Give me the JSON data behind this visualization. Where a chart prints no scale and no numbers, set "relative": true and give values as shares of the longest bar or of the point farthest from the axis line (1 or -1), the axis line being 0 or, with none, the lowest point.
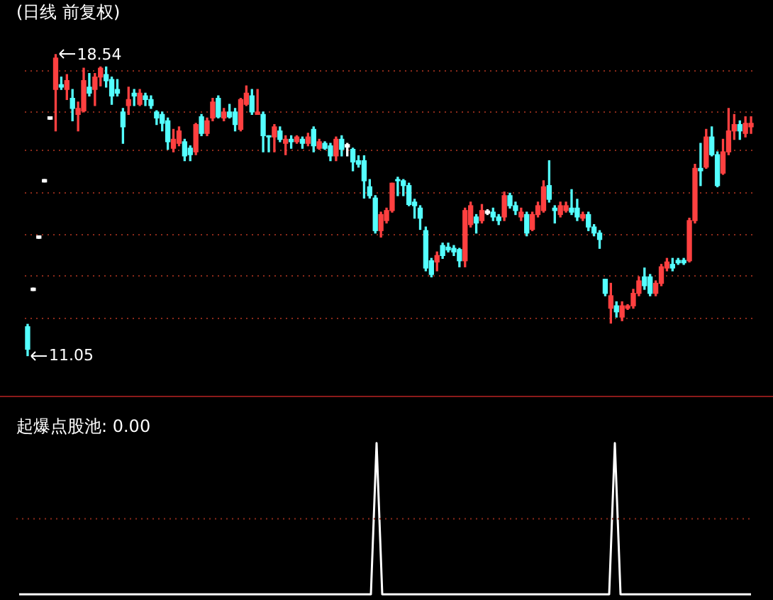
{
  "chart_data": [
    {
      "type": "candlestick",
      "title": "(日线 前复权)",
      "categories": [
        null,
        null,
        null,
        null,
        null,
        null,
        null,
        null,
        null,
        null,
        null,
        null,
        null,
        null,
        null,
        null,
        null,
        null,
        null,
        null,
        null,
        null,
        null,
        null,
        null,
        null,
        null,
        null,
        null,
        null,
        null,
        null,
        null,
        null,
        null,
        null,
        null,
        null,
        null,
        null,
        null,
        null,
        null,
        null,
        null,
        null,
        null,
        null,
        null,
        null,
        null,
        null,
        null,
        null,
        null,
        null,
        null,
        null,
        null,
        null,
        null,
        null,
        null,
        null,
        null,
        null,
        null,
        null,
        null,
        null,
        null,
        null,
        null,
        null,
        null,
        null,
        null,
        null,
        null,
        null,
        null,
        null,
        null,
        null,
        null,
        null,
        null,
        null,
        null,
        null,
        null,
        null,
        null,
        null,
        null,
        null,
        null,
        null,
        null,
        null,
        null,
        null,
        null,
        null,
        null,
        null,
        null,
        null,
        null,
        null,
        null,
        null,
        null,
        null,
        null,
        null,
        null,
        null,
        null,
        null,
        null,
        null,
        null,
        null,
        null,
        null,
        null,
        null,
        null,
        null
      ],
      "ohlc": [
        [
          11.77,
          11.83,
          11.05,
          11.21
        ],
        [
          12.73,
          12.73,
          12.67,
          12.67
        ],
        [
          14.03,
          14.03,
          13.97,
          13.97
        ],
        [
          15.43,
          15.43,
          15.37,
          15.37
        ],
        [
          16.99,
          16.99,
          16.93,
          16.93
        ],
        [
          17.67,
          18.54,
          16.64,
          18.45
        ],
        [
          17.79,
          17.98,
          17.67,
          17.73
        ],
        [
          17.67,
          18.04,
          17.42,
          17.89
        ],
        [
          17.45,
          17.67,
          16.89,
          17.2
        ],
        [
          17.05,
          17.36,
          16.64,
          17.2
        ],
        [
          17.14,
          18.2,
          17.11,
          17.89
        ],
        [
          17.73,
          18.07,
          17.51,
          17.58
        ],
        [
          17.67,
          18.07,
          17.27,
          17.98
        ],
        [
          17.98,
          18.23,
          17.76,
          18.2
        ],
        [
          18.04,
          18.23,
          17.73,
          17.89
        ],
        [
          17.92,
          17.98,
          17.3,
          17.51
        ],
        [
          17.67,
          17.92,
          17.51,
          17.58
        ],
        [
          17.11,
          17.2,
          16.33,
          16.74
        ],
        [
          17.27,
          17.73,
          17.05,
          17.42
        ],
        [
          17.58,
          17.67,
          17.27,
          17.51
        ],
        [
          17.3,
          17.67,
          17.27,
          17.58
        ],
        [
          17.51,
          17.58,
          17.27,
          17.42
        ],
        [
          17.42,
          17.51,
          17.2,
          17.27
        ],
        [
          17.11,
          17.14,
          16.8,
          16.96
        ],
        [
          17.05,
          17.11,
          16.64,
          16.83
        ],
        [
          16.89,
          16.96,
          16.18,
          16.37
        ],
        [
          16.21,
          16.68,
          16.12,
          16.43
        ],
        [
          16.33,
          16.74,
          16.27,
          16.64
        ],
        [
          16.37,
          16.43,
          15.9,
          16.02
        ],
        [
          16.21,
          16.27,
          15.9,
          16.05
        ],
        [
          16.12,
          16.83,
          16.05,
          16.8
        ],
        [
          16.99,
          17.05,
          16.52,
          16.58
        ],
        [
          16.58,
          16.96,
          16.52,
          16.89
        ],
        [
          16.96,
          17.45,
          16.89,
          17.36
        ],
        [
          17.45,
          17.51,
          16.96,
          16.99
        ],
        [
          16.96,
          17.2,
          16.89,
          17.11
        ],
        [
          17.11,
          17.3,
          16.96,
          16.99
        ],
        [
          17.11,
          17.2,
          16.64,
          16.8
        ],
        [
          16.68,
          17.45,
          16.64,
          17.42
        ],
        [
          17.3,
          17.76,
          17.27,
          17.58
        ],
        [
          17.51,
          17.67,
          17.05,
          17.11
        ],
        [
          17.05,
          17.67,
          17.05,
          17.11
        ],
        [
          17.05,
          17.11,
          16.12,
          16.52
        ],
        [
          16.52,
          16.52,
          16.12,
          16.49
        ],
        [
          16.49,
          16.8,
          16.12,
          16.74
        ],
        [
          16.64,
          16.74,
          16.37,
          16.43
        ],
        [
          16.33,
          16.52,
          16.05,
          16.43
        ],
        [
          16.43,
          16.52,
          16.21,
          16.37
        ],
        [
          16.37,
          16.52,
          16.33,
          16.49
        ],
        [
          16.43,
          16.49,
          16.21,
          16.33
        ],
        [
          16.33,
          16.58,
          16.27,
          16.49
        ],
        [
          16.68,
          16.74,
          16.12,
          16.27
        ],
        [
          16.21,
          16.43,
          16.18,
          16.37
        ],
        [
          16.33,
          16.37,
          16.18,
          16.21
        ],
        [
          16.27,
          16.33,
          15.9,
          16.02
        ],
        [
          16.02,
          16.49,
          15.9,
          16.43
        ],
        [
          16.43,
          16.52,
          16.02,
          16.18
        ],
        [
          16.3,
          16.33,
          16.02,
          16.24
        ],
        [
          16.18,
          16.21,
          15.65,
          15.87
        ],
        [
          15.9,
          16.02,
          15.74,
          15.81
        ],
        [
          15.9,
          16.02,
          14.97,
          15.4
        ],
        [
          15.25,
          15.43,
          14.97,
          15.03
        ],
        [
          14.97,
          15.03,
          14.1,
          14.16
        ],
        [
          14.16,
          14.62,
          14.0,
          14.56
        ],
        [
          14.41,
          14.72,
          14.35,
          14.66
        ],
        [
          14.66,
          15.34,
          14.62,
          15.34
        ],
        [
          15.43,
          15.49,
          15.03,
          15.4
        ],
        [
          15.4,
          15.43,
          15.03,
          15.28
        ],
        [
          15.28,
          15.34,
          14.78,
          14.81
        ],
        [
          14.87,
          14.94,
          14.47,
          14.78
        ],
        [
          14.72,
          14.78,
          14.19,
          14.47
        ],
        [
          14.16,
          14.25,
          13.16,
          13.23
        ],
        [
          13.41,
          13.47,
          13.01,
          13.07
        ],
        [
          13.38,
          13.63,
          13.16,
          13.54
        ],
        [
          13.79,
          13.85,
          13.47,
          13.54
        ],
        [
          13.75,
          13.85,
          13.63,
          13.68
        ],
        [
          13.72,
          13.79,
          13.54,
          13.63
        ],
        [
          13.69,
          13.72,
          13.26,
          13.41
        ],
        [
          13.41,
          14.72,
          13.26,
          14.66
        ],
        [
          14.31,
          14.87,
          14.25,
          14.78
        ],
        [
          14.5,
          14.56,
          14.1,
          14.35
        ],
        [
          14.41,
          14.81,
          14.35,
          14.66
        ],
        [
          14.65,
          14.68,
          14.56,
          14.59
        ],
        [
          14.62,
          14.72,
          14.41,
          14.5
        ],
        [
          14.5,
          14.56,
          14.31,
          14.41
        ],
        [
          14.5,
          15.12,
          14.41,
          15.03
        ],
        [
          15.03,
          15.09,
          14.72,
          14.78
        ],
        [
          14.78,
          14.87,
          14.56,
          14.66
        ],
        [
          14.5,
          14.72,
          14.41,
          14.62
        ],
        [
          14.56,
          14.62,
          14.03,
          14.1
        ],
        [
          14.19,
          14.62,
          14.16,
          14.56
        ],
        [
          14.56,
          14.87,
          14.5,
          14.78
        ],
        [
          14.66,
          15.4,
          14.62,
          15.25
        ],
        [
          15.28,
          15.9,
          14.87,
          14.94
        ],
        [
          14.72,
          14.78,
          14.35,
          14.66
        ],
        [
          14.56,
          14.87,
          14.5,
          14.78
        ],
        [
          14.66,
          14.87,
          14.62,
          14.78
        ],
        [
          14.72,
          15.18,
          14.56,
          14.62
        ],
        [
          14.72,
          14.94,
          14.41,
          14.5
        ],
        [
          14.47,
          14.62,
          14.41,
          14.56
        ],
        [
          14.56,
          14.62,
          14.16,
          14.25
        ],
        [
          14.25,
          14.31,
          14.03,
          14.1
        ],
        [
          14.1,
          14.16,
          13.72,
          13.94
        ],
        [
          12.95,
          12.95,
          12.54,
          12.6
        ],
        [
          12.23,
          12.85,
          11.86,
          12.54
        ],
        [
          12.29,
          12.39,
          12.01,
          12.14
        ],
        [
          12.01,
          12.39,
          11.92,
          12.29
        ],
        [
          12.23,
          12.32,
          12.2,
          12.29
        ],
        [
          12.29,
          12.7,
          12.23,
          12.6
        ],
        [
          12.6,
          13.01,
          12.54,
          12.91
        ],
        [
          13.01,
          13.23,
          12.7,
          12.79
        ],
        [
          13.01,
          13.07,
          12.54,
          12.6
        ],
        [
          12.6,
          12.91,
          12.54,
          12.85
        ],
        [
          12.85,
          13.32,
          12.79,
          13.26
        ],
        [
          13.23,
          13.47,
          13.16,
          13.38
        ],
        [
          13.32,
          13.47,
          13.16,
          13.23
        ],
        [
          13.42,
          13.47,
          13.32,
          13.36
        ],
        [
          13.42,
          13.47,
          13.32,
          13.36
        ],
        [
          13.41,
          14.47,
          13.38,
          14.41
        ],
        [
          14.41,
          15.81,
          14.35,
          15.71
        ],
        [
          15.71,
          16.33,
          15.28,
          15.65
        ],
        [
          15.74,
          16.68,
          15.71,
          16.49
        ],
        [
          16.49,
          16.74,
          16.02,
          16.05
        ],
        [
          16.05,
          16.12,
          15.25,
          15.28
        ],
        [
          15.59,
          16.43,
          15.56,
          16.12
        ],
        [
          16.12,
          17.2,
          16.05,
          16.64
        ],
        [
          16.64,
          17.05,
          16.43,
          16.8
        ],
        [
          16.8,
          16.89,
          16.43,
          16.64
        ],
        [
          16.58,
          16.99,
          16.49,
          16.83
        ],
        [
          16.74,
          16.99,
          16.58,
          16.83
        ]
      ],
      "colors": [
        "#54ffff",
        "#ffffff",
        "#ffffff",
        "#ffffff",
        "#ffffff",
        "#ff4040",
        "#54ffff",
        "#ff4040",
        "#54ffff",
        "#ff4040",
        "#ff4040",
        "#54ffff",
        "#ff4040",
        "#ff4040",
        "#54ffff",
        "#54ffff",
        "#54ffff",
        "#54ffff",
        "#ff4040",
        "#54ffff",
        "#ff4040",
        "#54ffff",
        "#54ffff",
        "#54ffff",
        "#54ffff",
        "#54ffff",
        "#ff4040",
        "#ff4040",
        "#54ffff",
        "#54ffff",
        "#ff4040",
        "#54ffff",
        "#ff4040",
        "#ff4040",
        "#54ffff",
        "#ff4040",
        "#54ffff",
        "#54ffff",
        "#ff4040",
        "#ff4040",
        "#54ffff",
        "#ff4040",
        "#54ffff",
        "#54ffff",
        "#ff4040",
        "#54ffff",
        "#ff4040",
        "#54ffff",
        "#ff4040",
        "#54ffff",
        "#ff4040",
        "#54ffff",
        "#ff4040",
        "#54ffff",
        "#54ffff",
        "#ff4040",
        "#54ffff",
        "#ffffff",
        "#54ffff",
        "#54ffff",
        "#54ffff",
        "#54ffff",
        "#54ffff",
        "#ff4040",
        "#ff4040",
        "#ff4040",
        "#54ffff",
        "#54ffff",
        "#54ffff",
        "#54ffff",
        "#54ffff",
        "#54ffff",
        "#54ffff",
        "#ff4040",
        "#54ffff",
        "#54ffff",
        "#54ffff",
        "#54ffff",
        "#ff4040",
        "#ff4040",
        "#54ffff",
        "#ff4040",
        "#ffffff",
        "#54ffff",
        "#54ffff",
        "#ff4040",
        "#54ffff",
        "#54ffff",
        "#ff4040",
        "#54ffff",
        "#ff4040",
        "#ff4040",
        "#ff4040",
        "#54ffff",
        "#54ffff",
        "#ff4040",
        "#ff4040",
        "#54ffff",
        "#54ffff",
        "#ff4040",
        "#54ffff",
        "#54ffff",
        "#54ffff",
        "#54ffff",
        "#ff4040",
        "#54ffff",
        "#ff4040",
        "#ff4040",
        "#ff4040",
        "#ff4040",
        "#54ffff",
        "#54ffff",
        "#ff4040",
        "#ff4040",
        "#ff4040",
        "#54ffff",
        "#54ffff",
        "#54ffff",
        "#ff4040",
        "#ff4040",
        "#54ffff",
        "#ff4040",
        "#54ffff",
        "#54ffff",
        "#ff4040",
        "#ff4040",
        "#ff4040",
        "#54ffff",
        "#ff4040",
        "#ff4040"
      ],
      "yticks": [
        {
          "value": 11.98,
          "label": null
        },
        {
          "value": 13.04,
          "label": null
        },
        {
          "value": 14.06,
          "label": null
        },
        {
          "value": 15.09,
          "label": null
        },
        {
          "value": 16.15,
          "label": null
        },
        {
          "value": 17.11,
          "label": null
        },
        {
          "value": 18.14,
          "label": null
        }
      ],
      "grid": "y",
      "legend": false,
      "annotations": [
        "18.54",
        "11.05"
      ]
    },
    {
      "type": "line",
      "title": "起爆点股池: 0.00",
      "relative": true,
      "legend": false,
      "ref_lines": [
        {
          "axis": "y",
          "value": 0.5,
          "color": "#8b2a1a",
          "line_style": "dotted"
        }
      ],
      "categories": [
        null,
        null,
        null,
        null,
        null,
        null,
        null,
        null,
        null,
        null,
        null,
        null,
        null,
        null,
        null,
        null,
        null,
        null,
        null,
        null,
        null,
        null,
        null,
        null,
        null,
        null,
        null,
        null,
        null,
        null,
        null,
        null,
        null,
        null,
        null,
        null,
        null,
        null,
        null,
        null,
        null,
        null,
        null,
        null,
        null,
        null,
        null,
        null,
        null,
        null,
        null,
        null,
        null,
        null,
        null,
        null,
        null,
        null,
        null,
        null,
        null,
        null,
        null,
        null,
        null,
        null,
        null,
        null,
        null,
        null,
        null,
        null,
        null,
        null,
        null,
        null,
        null,
        null,
        null,
        null,
        null,
        null,
        null,
        null,
        null,
        null,
        null,
        null,
        null,
        null,
        null,
        null,
        null,
        null,
        null,
        null,
        null,
        null,
        null,
        null,
        null,
        null,
        null,
        null,
        null,
        null,
        null,
        null,
        null,
        null,
        null,
        null,
        null,
        null,
        null,
        null,
        null,
        null,
        null,
        null,
        null,
        null,
        null,
        null,
        null,
        null,
        null,
        null,
        null,
        null
      ],
      "series": [
        {
          "color": "#ffffff",
          "values": [
            0,
            0,
            0,
            0,
            0,
            0,
            0,
            0,
            0,
            0,
            0,
            0,
            0,
            0,
            0,
            0,
            0,
            0,
            0,
            0,
            0,
            0,
            0,
            0,
            0,
            0,
            0,
            0,
            0,
            0,
            0,
            0,
            0,
            0,
            0,
            0,
            0,
            0,
            0,
            0,
            0,
            0,
            0,
            0,
            0,
            0,
            0,
            0,
            0,
            0,
            0,
            0,
            0,
            0,
            0,
            0,
            0,
            0,
            0,
            0,
            0,
            0,
            0,
            1,
            0,
            0,
            0,
            0,
            0,
            0,
            0,
            0,
            0,
            0,
            0,
            0,
            0,
            0,
            0,
            0,
            0,
            0,
            0,
            0,
            0,
            0,
            0,
            0,
            0,
            0,
            0,
            0,
            0,
            0,
            0,
            0,
            0,
            0,
            0,
            0,
            0,
            0,
            0,
            0,
            0,
            1,
            0,
            0,
            0,
            0,
            0,
            0,
            0,
            0,
            0,
            0,
            0,
            0,
            0,
            0,
            0,
            0,
            0,
            0,
            0,
            0,
            0,
            0,
            0,
            0
          ]
        }
      ]
    }
  ]
}
